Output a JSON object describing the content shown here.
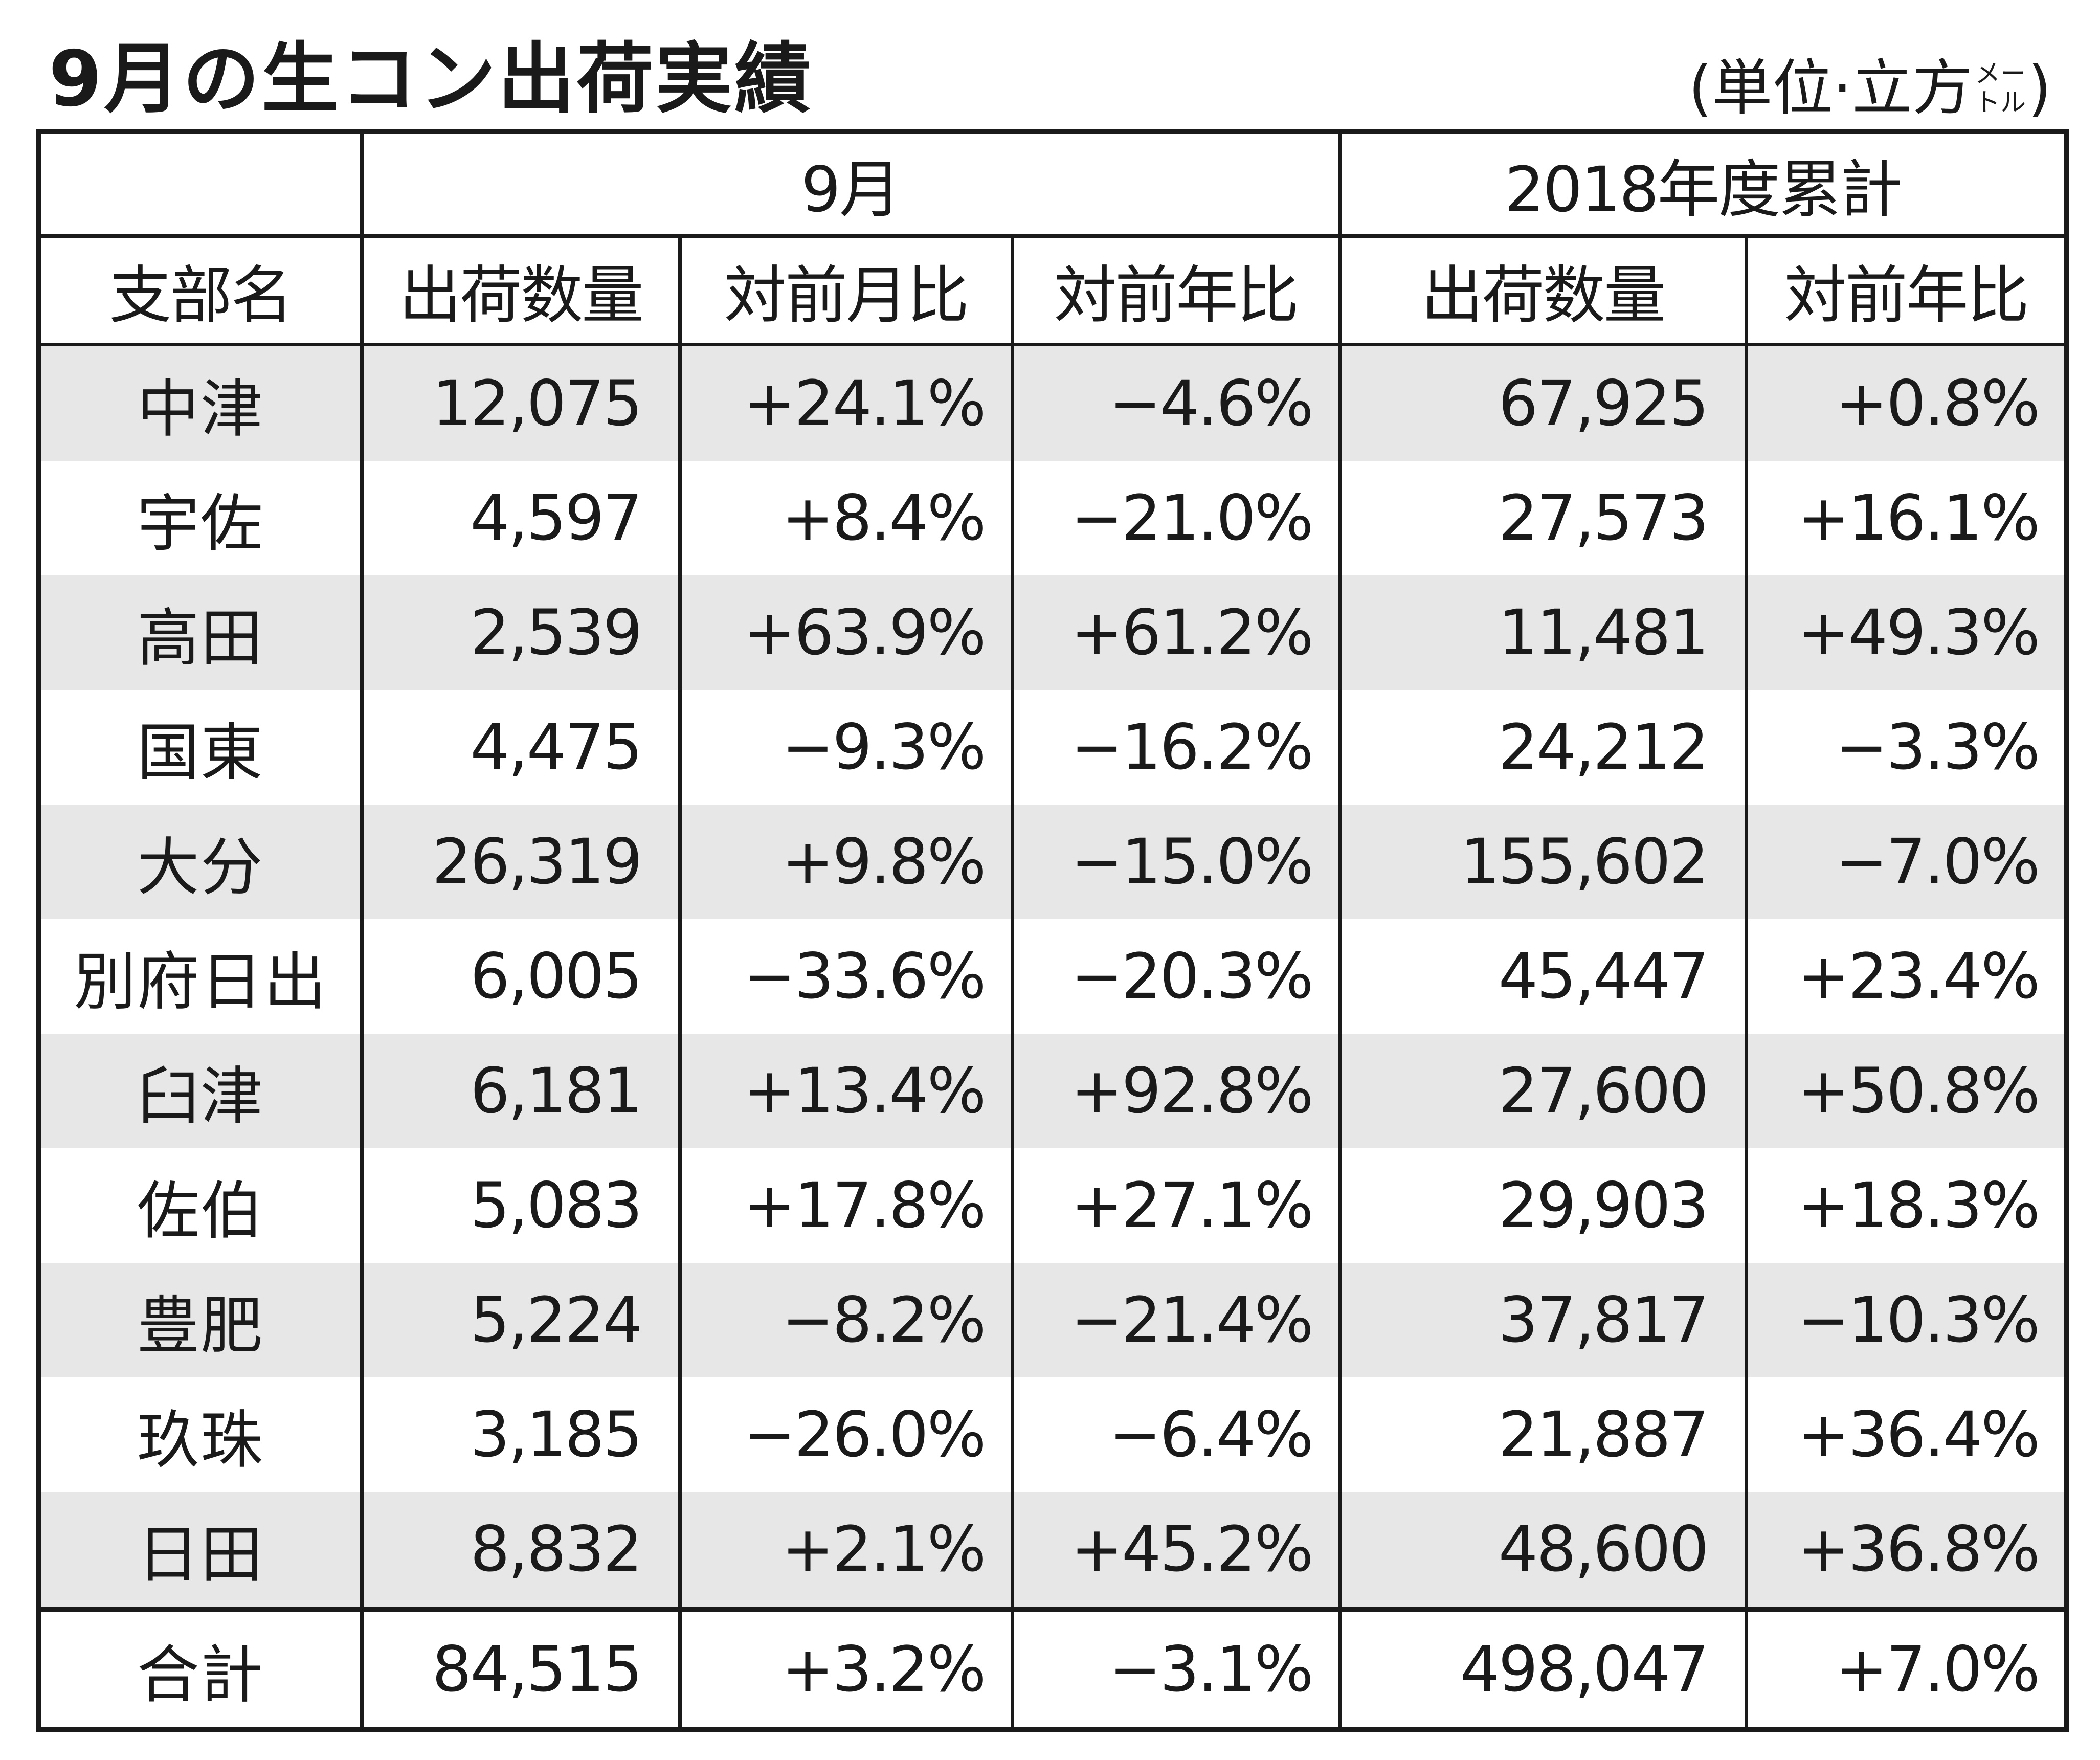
{
  "title": "9月の生コン出荷実績",
  "unit": {
    "open": "(単位·立方",
    "small_top": "メー",
    "small_bottom": "トル",
    "close": ")"
  },
  "header": {
    "group_month": "9月",
    "group_cumulative": "2018年度累計",
    "col_branch": "支部名",
    "col_qty": "出荷数量",
    "col_mom": "対前月比",
    "col_yoy": "対前年比",
    "col_cum_qty": "出荷数量",
    "col_cum_yoy": "対前年比"
  },
  "rows": [
    {
      "name": "中津",
      "qty": "12,075",
      "mom": "+24.1%",
      "yoy": "−4.6%",
      "cum_qty": "67,925",
      "cum_yoy": "+0.8%"
    },
    {
      "name": "宇佐",
      "qty": "4,597",
      "mom": "+8.4%",
      "yoy": "−21.0%",
      "cum_qty": "27,573",
      "cum_yoy": "+16.1%"
    },
    {
      "name": "高田",
      "qty": "2,539",
      "mom": "+63.9%",
      "yoy": "+61.2%",
      "cum_qty": "11,481",
      "cum_yoy": "+49.3%"
    },
    {
      "name": "国東",
      "qty": "4,475",
      "mom": "−9.3%",
      "yoy": "−16.2%",
      "cum_qty": "24,212",
      "cum_yoy": "−3.3%"
    },
    {
      "name": "大分",
      "qty": "26,319",
      "mom": "+9.8%",
      "yoy": "−15.0%",
      "cum_qty": "155,602",
      "cum_yoy": "−7.0%"
    },
    {
      "name": "別府日出",
      "qty": "6,005",
      "mom": "−33.6%",
      "yoy": "−20.3%",
      "cum_qty": "45,447",
      "cum_yoy": "+23.4%"
    },
    {
      "name": "臼津",
      "qty": "6,181",
      "mom": "+13.4%",
      "yoy": "+92.8%",
      "cum_qty": "27,600",
      "cum_yoy": "+50.8%"
    },
    {
      "name": "佐伯",
      "qty": "5,083",
      "mom": "+17.8%",
      "yoy": "+27.1%",
      "cum_qty": "29,903",
      "cum_yoy": "+18.3%"
    },
    {
      "name": "豊肥",
      "qty": "5,224",
      "mom": "−8.2%",
      "yoy": "−21.4%",
      "cum_qty": "37,817",
      "cum_yoy": "−10.3%"
    },
    {
      "name": "玖珠",
      "qty": "3,185",
      "mom": "−26.0%",
      "yoy": "−6.4%",
      "cum_qty": "21,887",
      "cum_yoy": "+36.4%"
    },
    {
      "name": "日田",
      "qty": "8,832",
      "mom": "+2.1%",
      "yoy": "+45.2%",
      "cum_qty": "48,600",
      "cum_yoy": "+36.8%"
    }
  ],
  "total": {
    "name": "合計",
    "qty": "84,515",
    "mom": "+3.2%",
    "yoy": "−3.1%",
    "cum_qty": "498,047",
    "cum_yoy": "+7.0%"
  },
  "colors": {
    "shade": "#e7e7e7",
    "line": "#1a1a1a"
  }
}
